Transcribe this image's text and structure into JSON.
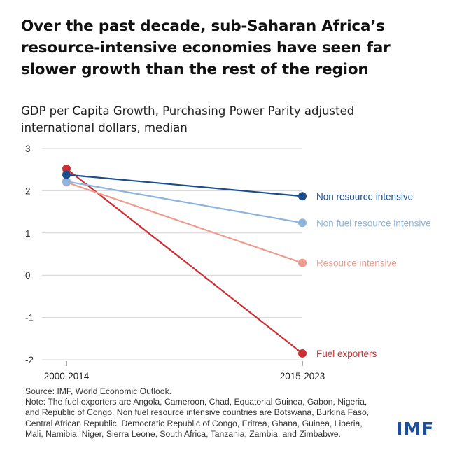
{
  "header": {
    "title_lines": [
      "Over the past decade, sub-Saharan Africa’s",
      "resource-intensive economies have seen far",
      "slower growth than the rest of the region"
    ],
    "subtitle_lines": [
      "GDP per Capita Growth, Purchasing Power Parity adjusted",
      "international dollars, median"
    ]
  },
  "chart_data": {
    "type": "line",
    "title": "GDP per Capita Growth, Purchasing Power Parity adjusted international dollars, median",
    "categories": [
      "2000-2014",
      "2015-2023"
    ],
    "yticks": [
      "3",
      "2",
      "1",
      "0",
      "-1",
      "-2"
    ],
    "ylim": [
      -2,
      3
    ],
    "grid": true,
    "series": [
      {
        "name": "Non resource intensive",
        "values": [
          2.38,
          1.87
        ],
        "color": "#1b4d8c"
      },
      {
        "name": "Non fuel resource intensive",
        "values": [
          2.22,
          1.24
        ],
        "color": "#8db4dd"
      },
      {
        "name": "Resource intensive",
        "values": [
          2.2,
          0.29
        ],
        "color": "#ee9c8e"
      },
      {
        "name": "Fuel exporters",
        "values": [
          2.52,
          -1.85
        ],
        "color": "#cc2e34"
      }
    ]
  },
  "footer": {
    "source": "Source: IMF, World Economic Outlook.",
    "note_lines": [
      "Note: The fuel exporters are Angola, Cameroon, Chad, Equatorial Guinea, Gabon, Nigeria,",
      "and Republic of Congo. Non fuel resource intensive countries are Botswana, Burkina Faso,",
      "Central African Republic, Democratic Republic of Congo, Eritrea, Ghana, Guinea, Liberia,",
      "Mali, Namibia, Niger, Sierra Leone, South Africa, Tanzania, Zambia, and Zimbabwe."
    ],
    "logo": "IMF",
    "logo_color": "#1e4d9a"
  }
}
